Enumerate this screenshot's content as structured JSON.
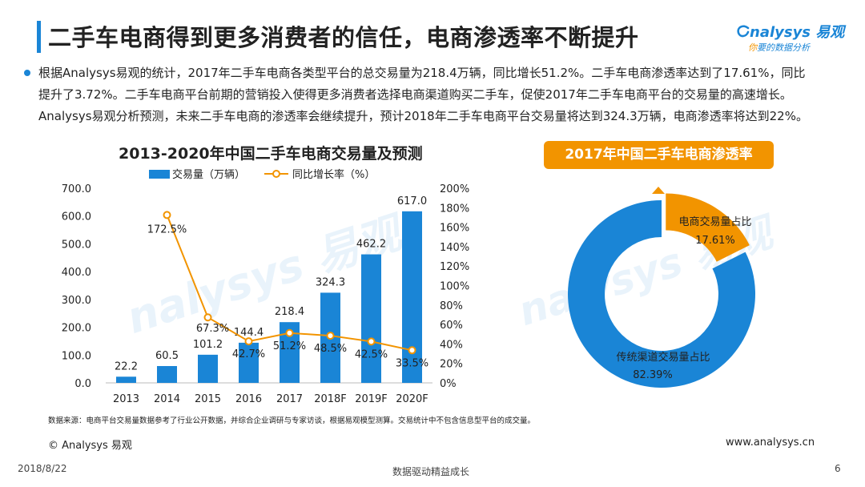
{
  "title": "二手车电商得到更多消费者的信任，电商渗透率不断提升",
  "logo": {
    "brand": "nalysys 易观",
    "tagline_accent": "你",
    "tagline": "要的数据分析"
  },
  "description": [
    "根据Analysys易观的统计，2017年二手车电商各类型平台的总交易量为218.4万辆，同比增长51.2%。二手车电商渗透率达到了17.61%，同比",
    "提升了3.72%。二手车电商平台前期的营销投入使得更多消费者选择电商渠道购买二手车，促使2017年二手车电商平台的交易量的高速增长。",
    "Analysys易观分析预测，未来二手车电商的渗透率会继续提升，预计2018年二手车电商平台交易量将达到324.3万辆，电商渗透率将达到22%。"
  ],
  "colors": {
    "accent_blue": "#1a85d6",
    "accent_orange": "#f29400"
  },
  "chart_data": [
    {
      "type": "bar",
      "title": "2013-2020年中国二手车电商交易量及预测",
      "categories": [
        "2013",
        "2014",
        "2015",
        "2016",
        "2017",
        "2018F",
        "2019F",
        "2020F"
      ],
      "series": [
        {
          "name": "交易量（万辆）",
          "type": "bar",
          "axis": "left",
          "values": [
            22.2,
            60.5,
            101.2,
            144.4,
            218.4,
            324.3,
            462.2,
            617.0
          ],
          "labels": [
            "22.2",
            "60.5",
            "101.2",
            "144.4",
            "218.4",
            "324.3",
            "462.2",
            "617.0"
          ]
        },
        {
          "name": "同比增长率（%）",
          "type": "line",
          "axis": "right",
          "values": [
            null,
            172.5,
            67.3,
            42.7,
            51.2,
            48.5,
            42.5,
            33.5
          ],
          "labels": [
            "",
            "172.5%",
            "67.3%",
            "42.7%",
            "51.2%",
            "48.5%",
            "42.5%",
            "33.5%"
          ]
        }
      ],
      "y_left": {
        "ylim": [
          0,
          700
        ],
        "ticks": [
          "0.0",
          "100.0",
          "200.0",
          "300.0",
          "400.0",
          "500.0",
          "600.0",
          "700.0"
        ]
      },
      "y_right": {
        "ylim": [
          0,
          200
        ],
        "ticks": [
          "0%",
          "20%",
          "40%",
          "60%",
          "80%",
          "100%",
          "120%",
          "140%",
          "160%",
          "180%",
          "200%"
        ]
      },
      "grid": false,
      "legend_position": "top"
    },
    {
      "type": "pie",
      "title": "2017年中国二手车电商渗透率",
      "donut": true,
      "slices": [
        {
          "label": "电商交易量占比",
          "value": 17.61,
          "display": "17.61%",
          "color": "#f29400"
        },
        {
          "label": "传统渠道交易量占比",
          "value": 82.39,
          "display": "82.39%",
          "color": "#1a85d6"
        }
      ]
    }
  ],
  "source": "数据来源：电商平台交易量数据参考了行业公开数据，并综合企业调研与专家访谈，根据易观模型测算。交易统计中不包含信息型平台的成交量。",
  "copyright": "© Analysys 易观",
  "website": "www.analysys.cn",
  "footer": {
    "date": "2018/8/22",
    "slogan": "数据驱动精益成长",
    "page": "6"
  }
}
